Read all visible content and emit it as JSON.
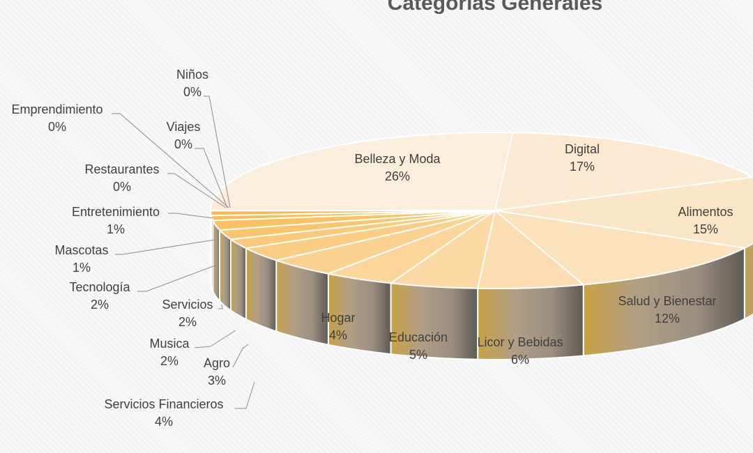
{
  "chart_data": {
    "type": "pie",
    "title": "Categorías Generales",
    "slices": [
      {
        "name": "Belleza y Moda",
        "label": "26%",
        "value": 26,
        "color": "#fbeedd"
      },
      {
        "name": "Digital",
        "label": "17%",
        "value": 17,
        "color": "#fbe9d2"
      },
      {
        "name": "Alimentos",
        "label": "15%",
        "value": 15,
        "color": "#fbe5c7"
      },
      {
        "name": "Salud y Bienestar",
        "label": "12%",
        "value": 12,
        "color": "#fbe1bc"
      },
      {
        "name": "Licor y Bebidas",
        "label": "6%",
        "value": 6,
        "color": "#fbddb1"
      },
      {
        "name": "Educación",
        "label": "5%",
        "value": 5,
        "color": "#fbd9a5"
      },
      {
        "name": "Hogar",
        "label": "4%",
        "value": 4,
        "color": "#fbd59a"
      },
      {
        "name": "Servicios Financieros",
        "label": "4%",
        "value": 4,
        "color": "#fbd18f"
      },
      {
        "name": "Agro",
        "label": "3%",
        "value": 3,
        "color": "#fbcd84"
      },
      {
        "name": "Musica",
        "label": "2%",
        "value": 2,
        "color": "#fbc979"
      },
      {
        "name": "Servicios",
        "label": "2%",
        "value": 2,
        "color": "#fbc56e"
      },
      {
        "name": "Tecnología",
        "label": "2%",
        "value": 2,
        "color": "#fbc163"
      },
      {
        "name": "Mascotas",
        "label": "1%",
        "value": 1,
        "color": "#fbbd58"
      },
      {
        "name": "Entretenimiento",
        "label": "1%",
        "value": 1,
        "color": "#fbb94d"
      },
      {
        "name": "Restaurantes",
        "label": "0%",
        "value": 0.01,
        "color": "#fbb542"
      },
      {
        "name": "Viajes",
        "label": "0%",
        "value": 0.01,
        "color": "#fbb137"
      },
      {
        "name": "Emprendimiento",
        "label": "0%",
        "value": 0.01,
        "color": "#fbad2c"
      },
      {
        "name": "Niños",
        "label": "0%",
        "value": 0.01,
        "color": "#fba921"
      }
    ]
  }
}
